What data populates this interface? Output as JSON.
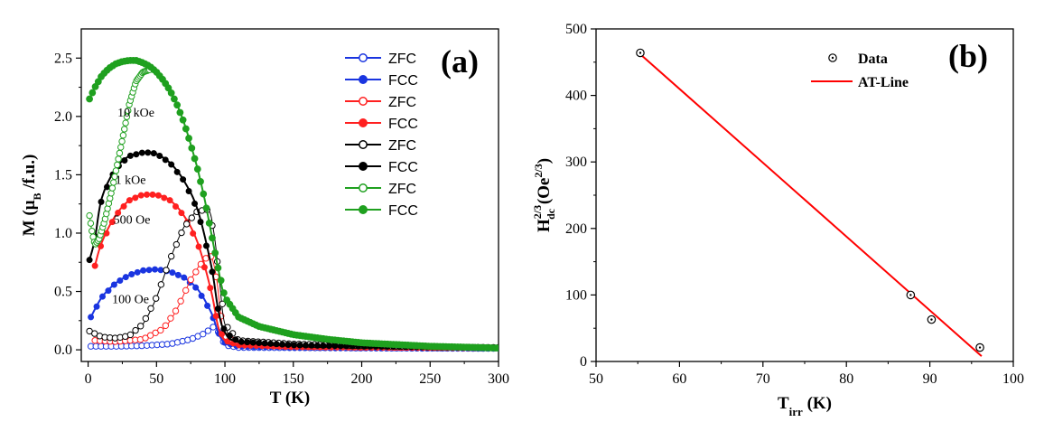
{
  "chart_data": [
    {
      "type": "line",
      "panel_label": "(a)",
      "xlabel": "T (K)",
      "ylabel": {
        "prefix": "M (",
        "mu": "μ",
        "sub": "B",
        "suffix": " /f.u.)"
      },
      "xlim": [
        -5,
        300
      ],
      "ylim": [
        -0.1,
        2.75
      ],
      "xticks": [
        0,
        50,
        100,
        150,
        200,
        250,
        300
      ],
      "yticks": [
        0.0,
        0.5,
        1.0,
        1.5,
        2.0,
        2.5
      ],
      "legend_position": "top-right",
      "annotations": [
        {
          "text": "10 kOe",
          "x": 35,
          "y": 2.0
        },
        {
          "text": "1 kOe",
          "x": 31,
          "y": 1.42
        },
        {
          "text": "500 Oe",
          "x": 32,
          "y": 1.08
        },
        {
          "text": "100 Oe",
          "x": 31,
          "y": 0.4
        }
      ],
      "series": [
        {
          "name": "ZFC",
          "field": "100 Oe",
          "color": "#1a35e0",
          "filled": false,
          "x": [
            2,
            20,
            40,
            60,
            75,
            85,
            92,
            96,
            100,
            110,
            150,
            200,
            250,
            300
          ],
          "y": [
            0.03,
            0.03,
            0.035,
            0.05,
            0.09,
            0.14,
            0.2,
            0.14,
            0.04,
            0.02,
            0.018,
            0.015,
            0.013,
            0.012
          ]
        },
        {
          "name": "FCC",
          "field": "100 Oe",
          "color": "#1a35e0",
          "filled": true,
          "x": [
            2,
            10,
            20,
            30,
            40,
            50,
            60,
            70,
            80,
            90,
            95,
            100,
            110,
            150,
            200,
            250,
            300
          ],
          "y": [
            0.28,
            0.45,
            0.57,
            0.64,
            0.68,
            0.69,
            0.67,
            0.62,
            0.52,
            0.32,
            0.15,
            0.06,
            0.03,
            0.02,
            0.016,
            0.014,
            0.012
          ]
        },
        {
          "name": "ZFC",
          "field": "500 Oe",
          "color": "#ff2020",
          "filled": false,
          "x": [
            5,
            20,
            40,
            55,
            65,
            75,
            85,
            90,
            94,
            97,
            100,
            110,
            150,
            200,
            250,
            300
          ],
          "y": [
            0.08,
            0.07,
            0.09,
            0.18,
            0.35,
            0.6,
            0.78,
            0.8,
            0.6,
            0.3,
            0.12,
            0.05,
            0.03,
            0.025,
            0.02,
            0.018
          ]
        },
        {
          "name": "FCC",
          "field": "500 Oe",
          "color": "#ff2020",
          "filled": true,
          "x": [
            5,
            10,
            20,
            30,
            40,
            50,
            60,
            70,
            80,
            90,
            95,
            100,
            110,
            150,
            200,
            250,
            300
          ],
          "y": [
            0.72,
            0.92,
            1.15,
            1.28,
            1.33,
            1.33,
            1.28,
            1.15,
            0.92,
            0.5,
            0.2,
            0.08,
            0.04,
            0.025,
            0.02,
            0.018,
            0.016
          ]
        },
        {
          "name": "ZFC",
          "field": "1 kOe",
          "color": "#000000",
          "filled": false,
          "x": [
            1,
            10,
            20,
            30,
            40,
            50,
            60,
            70,
            80,
            88,
            92,
            96,
            100,
            110,
            150,
            200,
            250,
            300
          ],
          "y": [
            0.16,
            0.11,
            0.1,
            0.12,
            0.22,
            0.45,
            0.78,
            1.05,
            1.19,
            1.2,
            1.0,
            0.6,
            0.22,
            0.08,
            0.05,
            0.035,
            0.025,
            0.02
          ]
        },
        {
          "name": "FCC",
          "field": "1 kOe",
          "color": "#000000",
          "filled": true,
          "x": [
            1,
            5,
            10,
            20,
            30,
            40,
            45,
            50,
            60,
            70,
            80,
            90,
            95,
            100,
            110,
            150,
            200,
            250,
            300
          ],
          "y": [
            0.77,
            0.95,
            1.3,
            1.55,
            1.66,
            1.69,
            1.69,
            1.68,
            1.6,
            1.45,
            1.2,
            0.72,
            0.35,
            0.15,
            0.07,
            0.04,
            0.03,
            0.025,
            0.02
          ]
        },
        {
          "name": "ZFC",
          "field": "10 kOe",
          "color": "#1fa01f",
          "filled": false,
          "x": [
            1,
            3,
            5,
            8,
            12,
            18,
            25,
            30,
            35,
            40,
            45
          ],
          "y": [
            1.15,
            1.0,
            0.9,
            0.95,
            1.1,
            1.4,
            1.8,
            2.1,
            2.3,
            2.38,
            2.4
          ]
        },
        {
          "name": "FCC",
          "field": "10 kOe",
          "color": "#1fa01f",
          "filled": true,
          "x": [
            1,
            5,
            10,
            15,
            20,
            25,
            30,
            35,
            40,
            45,
            50,
            55,
            60,
            65,
            70,
            75,
            80,
            85,
            90,
            95,
            100,
            110,
            125,
            150,
            175,
            200,
            250,
            300
          ],
          "y": [
            2.15,
            2.25,
            2.35,
            2.41,
            2.45,
            2.47,
            2.48,
            2.48,
            2.46,
            2.43,
            2.38,
            2.31,
            2.22,
            2.1,
            1.95,
            1.76,
            1.55,
            1.3,
            1.0,
            0.7,
            0.45,
            0.28,
            0.2,
            0.13,
            0.09,
            0.06,
            0.03,
            0.015
          ]
        }
      ]
    },
    {
      "type": "scatter",
      "panel_label": "(b)",
      "xlabel": {
        "main": "T",
        "sub": "irr",
        "suffix": " (K)"
      },
      "ylabel": {
        "main": "H",
        "sub": "dc",
        "sup": "2/3",
        "mid": " (Oe",
        "sup2": "2/3",
        "suffix": ")"
      },
      "xlim": [
        50,
        100
      ],
      "ylim": [
        0,
        500
      ],
      "xticks": [
        50,
        60,
        70,
        80,
        90,
        100
      ],
      "yticks": [
        0,
        100,
        200,
        300,
        400,
        500
      ],
      "legend_position": "top-right",
      "legend": [
        "Data",
        "AT-Line"
      ],
      "data_points": {
        "x": [
          55.3,
          87.7,
          90.2,
          96.0
        ],
        "y": [
          464,
          100,
          63,
          21
        ]
      },
      "fit_line": {
        "x": [
          55.3,
          96.2
        ],
        "y": [
          462,
          8
        ],
        "color": "#ff0000"
      }
    }
  ]
}
